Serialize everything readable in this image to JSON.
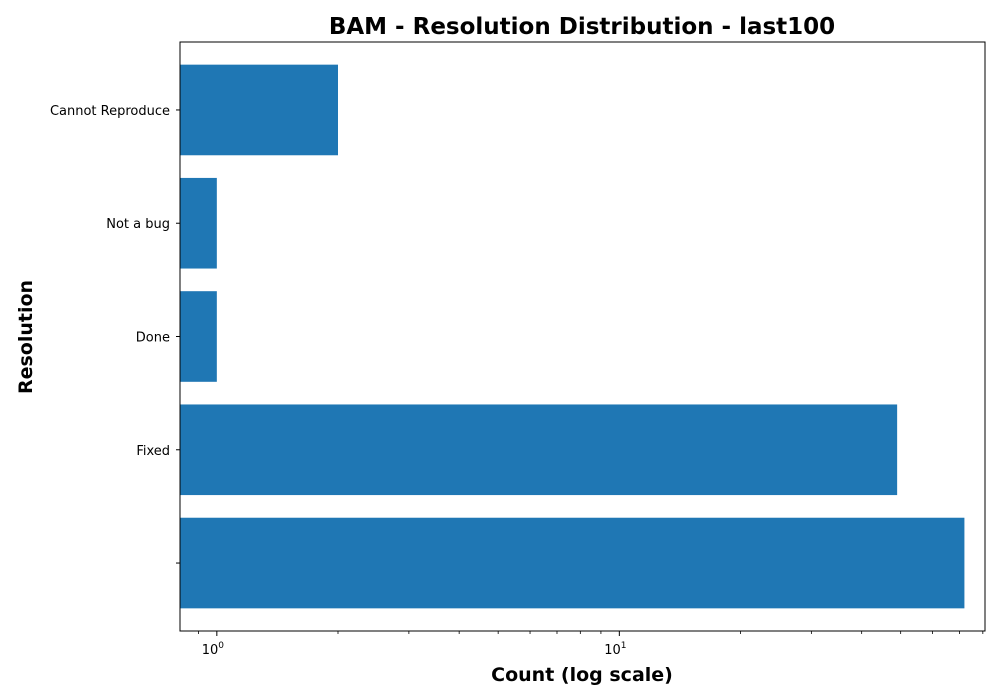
{
  "chart_data": {
    "type": "bar",
    "orientation": "horizontal",
    "title": "BAM - Resolution Distribution - last100",
    "xlabel": "Count (log scale)",
    "ylabel": "Resolution",
    "x_scale": "log",
    "xlim": [
      0.81,
      81
    ],
    "x_ticks": [
      {
        "value": 1,
        "base": "10",
        "exp": "0"
      },
      {
        "value": 10,
        "base": "10",
        "exp": "1"
      }
    ],
    "categories": [
      "",
      "Fixed",
      "Done",
      "Not a bug",
      "Cannot Reproduce"
    ],
    "values": [
      72,
      49,
      1,
      1,
      2
    ],
    "bar_color": "#1f77b4",
    "grid": false,
    "legend": "none"
  }
}
